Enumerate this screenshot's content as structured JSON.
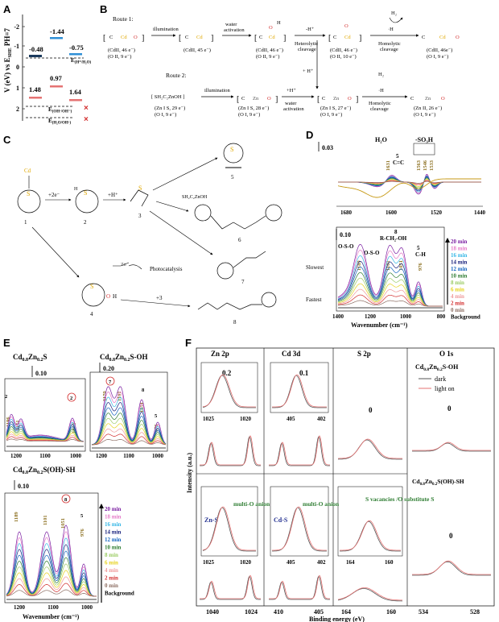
{
  "panels": {
    "A": {
      "letter": "A",
      "ylabel": "V (eV) vs E",
      "ylabel_sub": "SHE",
      "ylabel_tail": " PH=7",
      "ticks": [
        "-2",
        "-1",
        "0",
        "1",
        "2"
      ],
      "top_values": [
        "-0.48",
        "-1.44",
        "-0.75"
      ],
      "bottom_values": [
        "1.48",
        "0.97",
        "1.64"
      ],
      "ref1": "E",
      "ref1_sub": "(H⁺/H₂O)",
      "ref2": "E",
      "ref2_sub": "(OH·/OH⁻)",
      "ref3": "E",
      "ref3_sub": "(H₂O/OH·)",
      "cross": "×"
    },
    "B": {
      "letter": "B",
      "route1": "Route 1:",
      "route2": "Route 2:",
      "r1_steps": [
        "illumination",
        "water activation",
        "Heterolytic cleavage",
        "Homolytic cleavage"
      ],
      "r1_charges": [
        "-H⁺",
        "·H"
      ],
      "r1_labels": [
        [
          "(CdII, 46 e⁻)",
          "(O II, 9 e⁻)"
        ],
        [
          "(CdII, 45 e⁻)",
          ""
        ],
        [
          "(CdII, 46 e⁻)",
          "(O II, 9 e⁻)"
        ],
        [
          "(CdII, 46 e⁻)",
          "(O II, 10 e⁻)"
        ],
        [
          "(CdII, 46e⁻)",
          "(O I, 9 e⁻)"
        ]
      ],
      "r2_steps": [
        "illumination",
        "water activation",
        "Homolytic cleavage"
      ],
      "r2_charges": [
        "+H⁺",
        "·H",
        "+ H⁺"
      ],
      "r2_labels": [
        [
          "(Zn I S, 29 e⁻)",
          "(O I, 9 e⁻)"
        ],
        [
          "(Zn I S, 28 e⁻)",
          "(O I, 9 e⁻)"
        ],
        [
          "(Zn I S, 27 e⁻)",
          "(O I, 9 e⁻)"
        ],
        [
          "(Zn II, 26 e⁻)",
          "(O I, 9 e⁻)"
        ]
      ],
      "r2_species": "[ SH₂C₂ZnOH ]",
      "atom_cd": "Cd",
      "atom_zn": "Zn",
      "atom_o": "O",
      "atom_h": "H",
      "atom_h2": "H₂",
      "atom_c": "C"
    },
    "C": {
      "letter": "C",
      "atom_cd": "Cd",
      "atom_s": "S",
      "atom_o": "O",
      "atom_h": "H",
      "atom_zn": "Zn",
      "step_e": "+2e⁻",
      "step_h": "+H⁺",
      "step_3": "+3",
      "photocatalysis": "Photocatalysis",
      "species_label": "SH₂C₂ZnOH",
      "numbers": [
        "1",
        "2",
        "3",
        "4",
        "5",
        "6",
        "7",
        "8"
      ]
    },
    "D": {
      "letter": "D",
      "scale_top": "0.03",
      "scale_bottom": "0.10",
      "h2o": "H₂O",
      "so3h": "-SO₃H",
      "cc": "C=C",
      "peaks_top": [
        "1631",
        "1563",
        "1546",
        "1533"
      ],
      "ring5": "5",
      "peaks_bottom": [
        "1189",
        "1101",
        "1051",
        "976"
      ],
      "labels_bottom": [
        "O-S-O",
        "O-S-O",
        "R-CH₂-OH",
        "C-H"
      ],
      "num8": "8",
      "num5": "5",
      "slowest": "Slowest",
      "fastest": "Fastest",
      "xlabel": "Wavenumber (cm⁻¹)",
      "xticks_top": [
        "1680",
        "1600",
        "1520",
        "1440"
      ],
      "xticks_bottom": [
        "1400",
        "1200",
        "1000",
        "800"
      ],
      "legend": [
        "20 min",
        "18 min",
        "16 min",
        "14 min",
        "12 min",
        "10 min",
        "8 min",
        "6 min",
        "4 min",
        "2 min",
        "0 min",
        "Background"
      ],
      "legend_colors": [
        "#7b1fa2",
        "#e57bc8",
        "#37b7e6",
        "#1a237e",
        "#1565c0",
        "#2e7d32",
        "#9ccc65",
        "#e6d21c",
        "#ef9a9a",
        "#d32f2f",
        "#8d6e63",
        "#000000"
      ]
    },
    "E": {
      "letter": "E",
      "t1": "Cd",
      "t1b": "Zn",
      "t1c": "S",
      "s1": "0.8",
      "s2": "0.2",
      "title_oh": "S-OH",
      "title_ohsh": "S(OH)-SH",
      "scale1": "0.10",
      "scale2": "0.20",
      "scale3": "0.10",
      "p1": [
        "2",
        "1196",
        "1151",
        "1004",
        "2"
      ],
      "p2": [
        "1170",
        "7",
        "1101",
        "8",
        "1051",
        "5",
        "976"
      ],
      "p3": [
        "1189",
        "1101",
        "8",
        "1051",
        "5",
        "976"
      ],
      "xticks": [
        "1200",
        "1100",
        "1000"
      ],
      "xlabel": "Wavenumber (cm⁻¹)",
      "legend": [
        "20 min",
        "18 min",
        "16 min",
        "14 min",
        "12 min",
        "10 min",
        "8 min",
        "6 min",
        "4 min",
        "2 min",
        "0 min",
        "Background"
      ],
      "legend_colors": [
        "#7b1fa2",
        "#e57bc8",
        "#37b7e6",
        "#1a237e",
        "#1565c0",
        "#2e7d32",
        "#9ccc65",
        "#e6d21c",
        "#ef9a9a",
        "#d32f2f",
        "#8d6e63",
        "#000000"
      ]
    },
    "F": {
      "letter": "F",
      "cols": [
        "Zn 2p",
        "Cd 3d",
        "S 2p",
        "O 1s"
      ],
      "shift_zn": "0.2",
      "shift_cd": "0.1",
      "zero": "0",
      "xt_zn1": [
        "1025",
        "1020"
      ],
      "xt_cd1": [
        "405",
        "402"
      ],
      "xt_zn2": [
        "1025",
        "1020"
      ],
      "xt_cd2": [
        "405",
        "402"
      ],
      "xt_s2": [
        "164",
        "160"
      ],
      "xt_bottom": [
        "1040",
        "1024",
        "410",
        "405",
        "164",
        "160",
        "534",
        "528"
      ],
      "sample1": "Cd",
      "sample_sub1": "0.8",
      "sample_mid": "Zn",
      "sample_sub2": "0.2",
      "sample_tail1": "S-OH",
      "sample_tail2": "S(OH)-SH",
      "legend_dark": "dark",
      "legend_light": "light on",
      "zns": "Zn-S",
      "cds": "Cd-S",
      "multi_o": "multi-O anion",
      "s_vac": "S vacancies /O substitute S",
      "ylabel": "Intensity (a.u.)",
      "xlabel": "Binding energy (eV)"
    }
  }
}
